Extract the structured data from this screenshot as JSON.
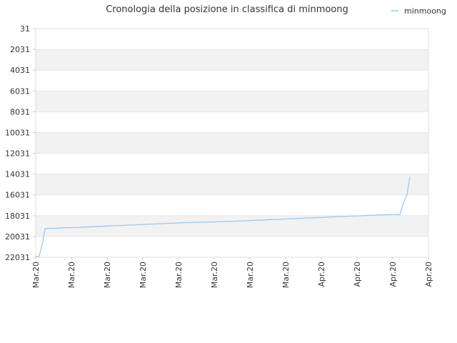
{
  "chart_data": {
    "type": "line",
    "title": "Cronologia della posizione in classifica di minmoong",
    "xlabel": "",
    "ylabel": "",
    "y_inverted": true,
    "ylim": [
      31,
      22031
    ],
    "y_ticks": [
      "31",
      "2031",
      "4031",
      "6031",
      "8031",
      "10031",
      "12031",
      "14031",
      "16031",
      "18031",
      "20031",
      "22031"
    ],
    "x_ticks": [
      "Mar.20",
      "Mar.20",
      "Mar.20",
      "Mar.20",
      "Mar.20",
      "Mar.20",
      "Mar.20",
      "Mar.20",
      "Apr.20",
      "Apr.20",
      "Apr.20",
      "Apr.20"
    ],
    "x": [
      0,
      0.5,
      1,
      1.3,
      1.7,
      2,
      3,
      4,
      5,
      6,
      7,
      8,
      9,
      10,
      11,
      12,
      13,
      14,
      15,
      16,
      17,
      18,
      19,
      20,
      21,
      22,
      22.7,
      23.2,
      23.8,
      24.3,
      25,
      25.5,
      26,
      26.5,
      27,
      28,
      29,
      30,
      31,
      32,
      33,
      34,
      35,
      36,
      37,
      38,
      39,
      40,
      41,
      42,
      43,
      44,
      45,
      46,
      47,
      48,
      49,
      50,
      51,
      51.5,
      52,
      52.4
    ],
    "legend_position": "top-right",
    "grid": "horizontal-bands",
    "series": [
      {
        "name": "minmoong",
        "color": "#9fc8ec",
        "values": [
          22031,
          21900,
          20500,
          19300,
          19250,
          19250,
          19230,
          19200,
          19180,
          19150,
          19120,
          19090,
          19060,
          19030,
          19000,
          18970,
          18940,
          18910,
          18880,
          18850,
          18820,
          18790,
          18760,
          18730,
          18700,
          18680,
          18670,
          18660,
          18650,
          18640,
          18630,
          18620,
          18610,
          18600,
          18590,
          18560,
          18530,
          18500,
          18470,
          18440,
          18410,
          18380,
          18350,
          18320,
          18290,
          18260,
          18230,
          18200,
          18170,
          18140,
          18110,
          18080,
          18050,
          18020,
          17990,
          17960,
          17940,
          17930,
          17930,
          16800,
          16000,
          14300
        ]
      }
    ]
  }
}
